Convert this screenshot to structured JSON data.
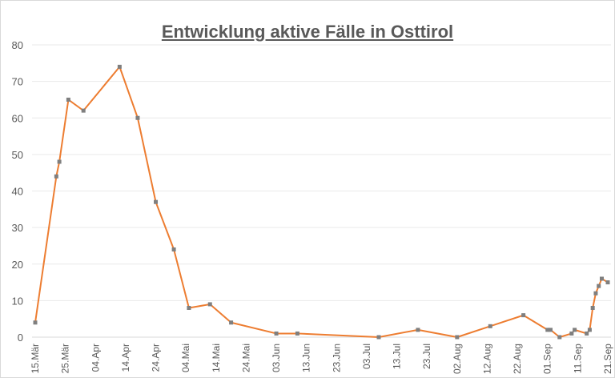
{
  "chart_data": {
    "type": "line",
    "title": "Entwicklung aktive Fälle in Osttirol",
    "xlabel": "",
    "ylabel": "",
    "ylim": [
      0,
      80
    ],
    "yticks": [
      0,
      10,
      20,
      30,
      40,
      50,
      60,
      70,
      80
    ],
    "xlim": [
      "03-15",
      "09-21"
    ],
    "xticks": [
      [
        "03-15",
        "15.Mär"
      ],
      [
        "03-25",
        "25.Mär"
      ],
      [
        "04-04",
        "04.Apr"
      ],
      [
        "04-14",
        "14.Apr"
      ],
      [
        "04-24",
        "24.Apr"
      ],
      [
        "05-04",
        "04.Mai"
      ],
      [
        "05-14",
        "14.Mai"
      ],
      [
        "05-24",
        "24.Mai"
      ],
      [
        "06-03",
        "03.Jun"
      ],
      [
        "06-13",
        "13.Jun"
      ],
      [
        "06-23",
        "23.Jun"
      ],
      [
        "07-03",
        "03.Jul"
      ],
      [
        "07-13",
        "13.Jul"
      ],
      [
        "07-23",
        "23.Jul"
      ],
      [
        "08-02",
        "02.Aug"
      ],
      [
        "08-12",
        "12.Aug"
      ],
      [
        "08-22",
        "22.Aug"
      ],
      [
        "09-01",
        "01.Sep"
      ],
      [
        "09-11",
        "11.Sep"
      ],
      [
        "09-21",
        "21.Sep"
      ]
    ],
    "grid": true,
    "colors": {
      "line": "#ed7d31",
      "marker": "#7f7f7f",
      "grid": "#e9e9e9"
    },
    "series": [
      {
        "points": [
          [
            "03-15",
            4
          ],
          [
            "03-22",
            44
          ],
          [
            "03-23",
            48
          ],
          [
            "03-26",
            65
          ],
          [
            "03-31",
            62
          ],
          [
            "04-12",
            74
          ],
          [
            "04-18",
            60
          ],
          [
            "04-24",
            37
          ],
          [
            "04-30",
            24
          ],
          [
            "05-05",
            8
          ],
          [
            "05-12",
            9
          ],
          [
            "05-19",
            4
          ],
          [
            "06-03",
            1
          ],
          [
            "06-10",
            1
          ],
          [
            "07-07",
            0
          ],
          [
            "07-20",
            2
          ],
          [
            "08-02",
            0
          ],
          [
            "08-13",
            3
          ],
          [
            "08-24",
            6
          ],
          [
            "09-01",
            2
          ],
          [
            "09-02",
            2
          ],
          [
            "09-05",
            0
          ],
          [
            "09-09",
            1
          ],
          [
            "09-10",
            2
          ],
          [
            "09-14",
            1
          ],
          [
            "09-15",
            2
          ],
          [
            "09-16",
            8
          ],
          [
            "09-17",
            12
          ],
          [
            "09-18",
            14
          ],
          [
            "09-19",
            16
          ],
          [
            "09-21",
            15
          ]
        ]
      }
    ]
  }
}
